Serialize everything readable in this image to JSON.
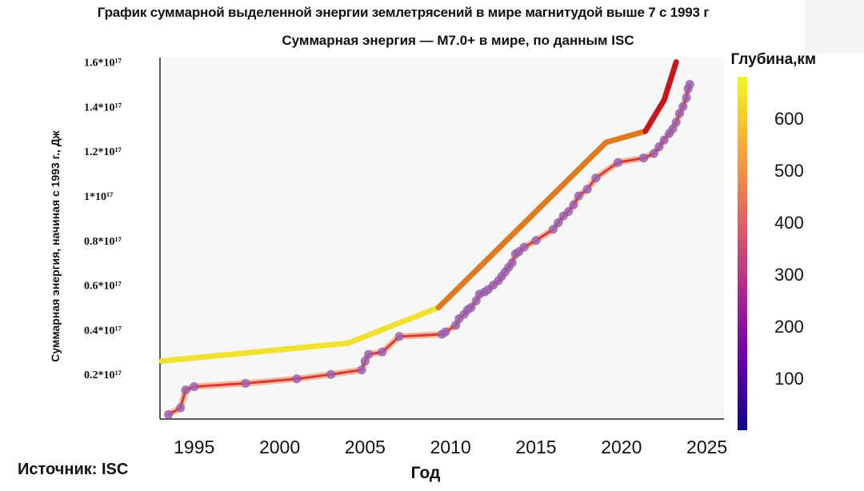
{
  "title": "График суммарной выделенной энергии землетрясений в мире магнитудой выше 7 с 1993 г",
  "subtitle": "Суммарная энергия — M7.0+ в мире, по данным ISC",
  "source": "Источник: ISC",
  "colors": {
    "trend_early": "#f1e230",
    "trend_mid": "#e07a1e",
    "trend_recent": "#c8161d",
    "line_glow": "#f3a070",
    "line": "#d63a3a",
    "marker": "#9a62b6",
    "axis": "#222222"
  },
  "chart_data": {
    "type": "line",
    "title": "Суммарная энергия — M7.0+ в мире, по данным ISC",
    "xlabel": "Год",
    "ylabel": "Суммарная энергия, начиная с 1993 г., Дж",
    "xlim": [
      1993,
      2026
    ],
    "ylim": [
      0,
      1.62
    ],
    "y_unit_note": "values in units of 10^17 J",
    "x_ticks": [
      1995,
      2000,
      2005,
      2010,
      2015,
      2020,
      2025
    ],
    "x_tick_labels": [
      "1995",
      "2000",
      "2005",
      "2010",
      "2015",
      "2020",
      "2025"
    ],
    "y_ticks": [
      0.2,
      0.4,
      0.6,
      0.8,
      1.0,
      1.2,
      1.4,
      1.6
    ],
    "y_tick_labels": [
      "0.2*10¹⁷",
      "0.4*10¹⁷",
      "0.6*10¹⁷",
      "0.8*10¹⁷",
      "1*10¹⁷",
      "1.2*10¹⁷",
      "1.4*10¹⁷",
      "1.6*10¹⁷"
    ],
    "grid": false,
    "series": [
      {
        "style": "line_with_markers",
        "x": [
          1993.5,
          1994.2,
          1994.5,
          1995.0,
          1998.0,
          2001.0,
          2003.0,
          2004.8,
          2005.0,
          2005.2,
          2006.0,
          2007.0,
          2009.5,
          2009.7,
          2010.3,
          2010.5,
          2010.8,
          2011.0,
          2011.2,
          2011.5,
          2011.7,
          2012.0,
          2012.2,
          2012.5,
          2012.8,
          2013.0,
          2013.2,
          2013.4,
          2013.6,
          2013.8,
          2014.0,
          2014.3,
          2015.0,
          2016.0,
          2016.3,
          2016.6,
          2016.9,
          2017.2,
          2017.5,
          2018.0,
          2018.5,
          2019.8,
          2021.3,
          2021.9,
          2022.2,
          2022.5,
          2022.8,
          2023.0,
          2023.2,
          2023.4,
          2023.6,
          2023.8,
          2023.9,
          2024.0
        ],
        "y": [
          0.02,
          0.05,
          0.13,
          0.145,
          0.16,
          0.18,
          0.2,
          0.22,
          0.26,
          0.29,
          0.3,
          0.37,
          0.38,
          0.39,
          0.42,
          0.45,
          0.47,
          0.49,
          0.5,
          0.53,
          0.56,
          0.57,
          0.58,
          0.6,
          0.62,
          0.64,
          0.66,
          0.68,
          0.7,
          0.74,
          0.75,
          0.77,
          0.8,
          0.85,
          0.88,
          0.91,
          0.93,
          0.96,
          1.0,
          1.03,
          1.08,
          1.15,
          1.17,
          1.19,
          1.22,
          1.25,
          1.28,
          1.3,
          1.33,
          1.37,
          1.4,
          1.44,
          1.48,
          1.5
        ]
      },
      {
        "style": "trend_segment",
        "color": "#f1e230",
        "x": [
          1993.1,
          2004.0,
          2009.3
        ],
        "y": [
          0.26,
          0.34,
          0.5
        ]
      },
      {
        "style": "trend_segment",
        "color": "#e07a1e",
        "x": [
          2009.3,
          2019.1,
          2021.4
        ],
        "y": [
          0.5,
          1.24,
          1.29
        ]
      },
      {
        "style": "trend_segment",
        "color": "#c8161d",
        "x": [
          2021.4,
          2022.5,
          2023.2
        ],
        "y": [
          1.29,
          1.43,
          1.6
        ]
      }
    ],
    "colorbar": {
      "label": "Глубина,км",
      "ticks": [
        100,
        200,
        300,
        400,
        500,
        600
      ],
      "tick_labels": [
        "100",
        "200",
        "300",
        "400",
        "500",
        "600"
      ],
      "range": [
        0,
        680
      ],
      "colormap": [
        "#0d0887",
        "#6a00a8",
        "#b12a90",
        "#e16462",
        "#fca636",
        "#f0f921"
      ]
    }
  }
}
